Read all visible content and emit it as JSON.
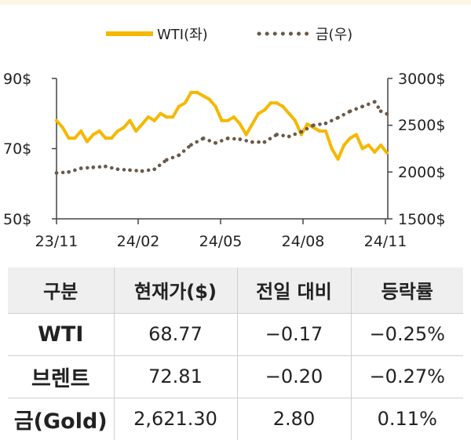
{
  "chart_data": {
    "type": "line",
    "x_ticks": [
      "23/11",
      "24/02",
      "24/05",
      "24/08",
      "24/11"
    ],
    "y_left_ticks": [
      "90$",
      "70$",
      "50$"
    ],
    "y_right_ticks": [
      "3000$",
      "2500$",
      "2000$",
      "1500$"
    ],
    "y_left_range": [
      50,
      90
    ],
    "y_right_range": [
      1500,
      3000
    ],
    "legend_position": "top-center",
    "series": [
      {
        "name": "WTI(좌)",
        "axis": "left",
        "color": "#f5b800",
        "style": "solid",
        "x": [
          "2023-11-01",
          "2023-11-08",
          "2023-11-15",
          "2023-11-22",
          "2023-11-29",
          "2023-12-06",
          "2023-12-13",
          "2023-12-20",
          "2023-12-27",
          "2024-01-03",
          "2024-01-10",
          "2024-01-17",
          "2024-01-24",
          "2024-01-31",
          "2024-02-07",
          "2024-02-14",
          "2024-02-21",
          "2024-02-28",
          "2024-03-06",
          "2024-03-13",
          "2024-03-20",
          "2024-03-27",
          "2024-04-03",
          "2024-04-10",
          "2024-04-17",
          "2024-04-24",
          "2024-05-01",
          "2024-05-08",
          "2024-05-15",
          "2024-05-22",
          "2024-05-29",
          "2024-06-05",
          "2024-06-12",
          "2024-06-19",
          "2024-06-26",
          "2024-07-03",
          "2024-07-10",
          "2024-07-17",
          "2024-07-24",
          "2024-07-31",
          "2024-08-07",
          "2024-08-14",
          "2024-08-21",
          "2024-08-28",
          "2024-09-04",
          "2024-09-11",
          "2024-09-18",
          "2024-09-25",
          "2024-10-02",
          "2024-10-09",
          "2024-10-16",
          "2024-10-23",
          "2024-10-30",
          "2024-11-06",
          "2024-11-13"
        ],
        "values": [
          78,
          76,
          73,
          73,
          75,
          72,
          74,
          75,
          73,
          73,
          75,
          76,
          78,
          75,
          77,
          79,
          78,
          80,
          79,
          79,
          82,
          83,
          86,
          86,
          85,
          84,
          82,
          78,
          78,
          79,
          77,
          74,
          77,
          80,
          81,
          83,
          83,
          82,
          80,
          78,
          74,
          77,
          76,
          75,
          75,
          70,
          67,
          71,
          73,
          74,
          70,
          71,
          69,
          71,
          68.77
        ]
      },
      {
        "name": "금(우)",
        "axis": "right",
        "color": "#6b5a4a",
        "style": "dotted",
        "x": [
          "2023-11-01",
          "2023-11-15",
          "2023-11-29",
          "2023-12-13",
          "2023-12-27",
          "2024-01-10",
          "2024-01-24",
          "2024-02-07",
          "2024-02-21",
          "2024-03-06",
          "2024-03-20",
          "2024-04-03",
          "2024-04-17",
          "2024-05-01",
          "2024-05-15",
          "2024-05-29",
          "2024-06-12",
          "2024-06-26",
          "2024-07-10",
          "2024-07-24",
          "2024-08-07",
          "2024-08-21",
          "2024-09-04",
          "2024-09-18",
          "2024-10-02",
          "2024-10-16",
          "2024-10-30",
          "2024-11-06",
          "2024-11-13"
        ],
        "values": [
          1990,
          2000,
          2040,
          2050,
          2060,
          2030,
          2020,
          2010,
          2030,
          2130,
          2180,
          2290,
          2360,
          2310,
          2360,
          2350,
          2320,
          2320,
          2400,
          2380,
          2430,
          2500,
          2520,
          2580,
          2650,
          2700,
          2750,
          2650,
          2621.3
        ]
      }
    ]
  },
  "table": {
    "headers": [
      "구분",
      "현재가($)",
      "전일 대비",
      "등락률"
    ],
    "rows": [
      [
        "WTI",
        "68.77",
        "−0.17",
        "−0.25%"
      ],
      [
        "브렌트",
        "72.81",
        "−0.20",
        "−0.27%"
      ],
      [
        "금(Gold)",
        "2,621.30",
        "2.80",
        "0.11%"
      ]
    ]
  }
}
